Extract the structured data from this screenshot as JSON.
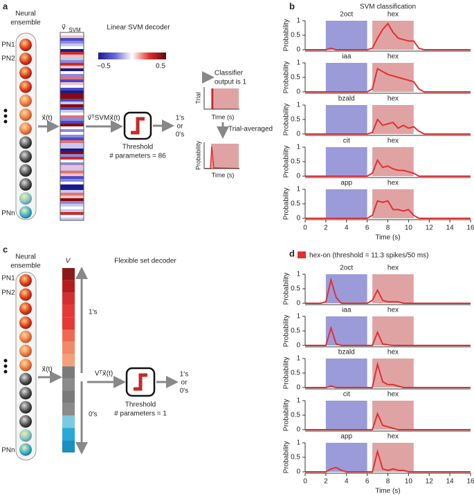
{
  "panels": {
    "a": "a",
    "b": "b",
    "c": "c",
    "d": "d"
  },
  "diagram_a": {
    "ensemble_line1": "Neural",
    "ensemble_line2": "ensemble",
    "pn1": "PN1",
    "pn2": "PN2",
    "pnn": "PNn",
    "decoder_title": "Linear SVM decoder",
    "vector_label": "v⃗",
    "vector_sub": "SVM",
    "colorbar_min": "−0.5",
    "colorbar_max": "0.5",
    "input": "x⃗(t)",
    "projection": "v⃗ᵀSVMx⃗(t)",
    "threshold": "Threshold",
    "parameters": "# parameters = 86",
    "out1": "1's",
    "out2": "or",
    "out3": "0's",
    "classifier1": "Classifier",
    "classifier2": "output is 1",
    "trial": "Trial",
    "time1": "Time (s)",
    "averaged": "Trial-averaged",
    "probability": "Probability",
    "time2": "Time (s)"
  },
  "diagram_c": {
    "ensemble_line1": "Neural",
    "ensemble_line2": "ensemble",
    "pn1": "PN1",
    "pn2": "PN2",
    "pnn": "PNn",
    "decoder_title": "Flexible set decoder",
    "vector_label": "V",
    "ones": "1's",
    "zeros": "0's",
    "input": "x⃗(t)",
    "projection": "Vᵀx⃗(t)",
    "threshold": "Threshold",
    "parameters": "# parameters = 1",
    "out1": "1's",
    "out2": "or",
    "out3": "0's"
  },
  "chart_data": [
    {
      "type": "line",
      "title": "SVM classification",
      "ylabel": "Probability",
      "xlim": [
        0,
        16
      ],
      "ylim": [
        0,
        1
      ],
      "yticks": [
        0,
        0.5,
        1
      ],
      "spans": [
        {
          "label": "2oct",
          "start": 2,
          "end": 6,
          "color": "#9b9bd9"
        },
        {
          "label": "hex",
          "start": 6.5,
          "end": 10.5,
          "color": "#e0a3a3"
        }
      ],
      "series": [
        {
          "color": "#e03030",
          "x": [
            0,
            0.5,
            1,
            1.5,
            2,
            2.5,
            3,
            3.5,
            4,
            4.5,
            5,
            5.5,
            6,
            6.5,
            7,
            7.5,
            8,
            8.5,
            9,
            9.5,
            10,
            10.5,
            11,
            11.5,
            12,
            12.5,
            13,
            13.5,
            14,
            14.5,
            15,
            15.5,
            16
          ],
          "values": [
            0,
            0,
            0,
            0,
            0,
            0.05,
            0,
            0,
            0,
            0,
            0,
            0,
            0,
            0.05,
            0.4,
            0.7,
            0.9,
            0.6,
            0.4,
            0.35,
            0.3,
            0.3,
            0.05,
            0,
            0,
            0,
            0,
            0,
            0,
            0,
            0,
            0,
            0
          ]
        }
      ]
    },
    {
      "type": "line",
      "ylabel": "Probability",
      "xlim": [
        0,
        16
      ],
      "ylim": [
        0,
        1
      ],
      "yticks": [
        0,
        0.5,
        1
      ],
      "spans": [
        {
          "label": "iaa",
          "start": 2,
          "end": 6,
          "color": "#9b9bd9"
        },
        {
          "label": "hex",
          "start": 6.5,
          "end": 10.5,
          "color": "#e0a3a3"
        }
      ],
      "series": [
        {
          "color": "#e03030",
          "x": [
            0,
            0.5,
            1,
            1.5,
            2,
            2.5,
            3,
            3.5,
            4,
            4.5,
            5,
            5.5,
            6,
            6.5,
            7,
            7.5,
            8,
            8.5,
            9,
            9.5,
            10,
            10.5,
            11,
            11.5,
            12,
            12.5,
            13,
            13.5,
            14,
            14.5,
            15,
            15.5,
            16
          ],
          "values": [
            0,
            0,
            0,
            0,
            0,
            0,
            0,
            0,
            0,
            0,
            0,
            0,
            0,
            0.1,
            0.8,
            0.7,
            0.6,
            0.55,
            0.5,
            0.45,
            0.4,
            0.35,
            0.1,
            0,
            0,
            0,
            0,
            0,
            0,
            0,
            0,
            0,
            0
          ]
        }
      ]
    },
    {
      "type": "line",
      "ylabel": "Probability",
      "xlim": [
        0,
        16
      ],
      "ylim": [
        0,
        1
      ],
      "yticks": [
        0,
        0.5,
        1
      ],
      "spans": [
        {
          "label": "bzald",
          "start": 2,
          "end": 6,
          "color": "#9b9bd9"
        },
        {
          "label": "hex",
          "start": 6.5,
          "end": 10.5,
          "color": "#e0a3a3"
        }
      ],
      "series": [
        {
          "color": "#e03030",
          "x": [
            0,
            0.5,
            1,
            1.5,
            2,
            2.5,
            3,
            3.5,
            4,
            4.5,
            5,
            5.5,
            6,
            6.5,
            7,
            7.5,
            8,
            8.5,
            9,
            9.5,
            10,
            10.5,
            11,
            11.5,
            12,
            12.5,
            13,
            13.5,
            14,
            14.5,
            15,
            15.5,
            16
          ],
          "values": [
            0,
            0,
            0,
            0,
            0,
            0,
            0,
            0,
            0,
            0,
            0,
            0,
            0,
            0.05,
            0.5,
            0.3,
            0.35,
            0.4,
            0.2,
            0.3,
            0.2,
            0.25,
            0.1,
            0,
            0,
            0,
            0,
            0,
            0,
            0,
            0,
            0,
            0
          ]
        }
      ]
    },
    {
      "type": "line",
      "ylabel": "Probability",
      "xlim": [
        0,
        16
      ],
      "ylim": [
        0,
        1
      ],
      "yticks": [
        0,
        0.5,
        1
      ],
      "spans": [
        {
          "label": "cit",
          "start": 2,
          "end": 6,
          "color": "#9b9bd9"
        },
        {
          "label": "hex",
          "start": 6.5,
          "end": 10.5,
          "color": "#e0a3a3"
        }
      ],
      "series": [
        {
          "color": "#e03030",
          "x": [
            0,
            0.5,
            1,
            1.5,
            2,
            2.5,
            3,
            3.5,
            4,
            4.5,
            5,
            5.5,
            6,
            6.5,
            7,
            7.5,
            8,
            8.5,
            9,
            9.5,
            10,
            10.5,
            11,
            11.5,
            12,
            12.5,
            13,
            13.5,
            14,
            14.5,
            15,
            15.5,
            16
          ],
          "values": [
            0,
            0,
            0,
            0,
            0,
            0,
            0,
            0,
            0,
            0,
            0,
            0,
            0,
            0.1,
            0.55,
            0.3,
            0.35,
            0.25,
            0.2,
            0.2,
            0.15,
            0.1,
            0,
            0,
            0,
            0,
            0,
            0,
            0,
            0,
            0,
            0,
            0
          ]
        }
      ]
    },
    {
      "type": "line",
      "ylabel": "Probability",
      "xlim": [
        0,
        16
      ],
      "ylim": [
        0,
        1
      ],
      "yticks": [
        0,
        0.5,
        1
      ],
      "xticks": [
        0,
        2,
        4,
        6,
        8,
        10,
        12,
        14,
        16
      ],
      "xlabel": "Time (s)",
      "spans": [
        {
          "label": "app",
          "start": 2,
          "end": 6,
          "color": "#9b9bd9"
        },
        {
          "label": "hex",
          "start": 6.5,
          "end": 10.5,
          "color": "#e0a3a3"
        }
      ],
      "series": [
        {
          "color": "#e03030",
          "x": [
            0,
            0.5,
            1,
            1.5,
            2,
            2.5,
            3,
            3.5,
            4,
            4.5,
            5,
            5.5,
            6,
            6.5,
            7,
            7.5,
            8,
            8.5,
            9,
            9.5,
            10,
            10.5,
            11,
            11.5,
            12,
            12.5,
            13,
            13.5,
            14,
            14.5,
            15,
            15.5,
            16
          ],
          "values": [
            0,
            0,
            0,
            0,
            0,
            0,
            0,
            0,
            0,
            0,
            0,
            0,
            0,
            0.1,
            0.6,
            0.55,
            0.6,
            0.3,
            0.3,
            0.25,
            0.3,
            0.1,
            0,
            0,
            0,
            0,
            0,
            0,
            0,
            0,
            0,
            0,
            0
          ]
        }
      ]
    },
    {
      "type": "line",
      "ylabel": "Probability",
      "xlim": [
        0,
        16
      ],
      "ylim": [
        0,
        1
      ],
      "yticks": [
        0,
        0.5,
        1
      ],
      "spans": [
        {
          "label": "2oct",
          "start": 2,
          "end": 6,
          "color": "#9b9bd9"
        },
        {
          "label": "hex",
          "start": 6.5,
          "end": 10.5,
          "color": "#e0a3a3"
        }
      ],
      "series": [
        {
          "name": "hex-on (threshold = 11.3 spikes/50 ms)",
          "color": "#e03030",
          "x": [
            0,
            0.5,
            1,
            1.5,
            2,
            2.5,
            3,
            3.5,
            4,
            4.5,
            5,
            5.5,
            6,
            6.5,
            7,
            7.5,
            8,
            8.5,
            9,
            9.5,
            10,
            10.5,
            11,
            11.5,
            12,
            12.5,
            13,
            13.5,
            14,
            14.5,
            15,
            15.5,
            16
          ],
          "values": [
            0,
            0,
            0,
            0,
            0.05,
            0.8,
            0.2,
            0,
            0,
            0,
            0,
            0,
            0,
            0.1,
            0.45,
            0.1,
            0.05,
            0.05,
            0.05,
            0,
            0,
            0,
            0,
            0,
            0,
            0,
            0,
            0,
            0,
            0,
            0,
            0,
            0
          ]
        }
      ]
    },
    {
      "type": "line",
      "ylabel": "Probability",
      "xlim": [
        0,
        16
      ],
      "ylim": [
        0,
        1
      ],
      "yticks": [
        0,
        0.5,
        1
      ],
      "spans": [
        {
          "label": "iaa",
          "start": 2,
          "end": 6,
          "color": "#9b9bd9"
        },
        {
          "label": "hex",
          "start": 6.5,
          "end": 10.5,
          "color": "#e0a3a3"
        }
      ],
      "series": [
        {
          "color": "#e03030",
          "x": [
            0,
            0.5,
            1,
            1.5,
            2,
            2.5,
            3,
            3.5,
            4,
            4.5,
            5,
            5.5,
            6,
            6.5,
            7,
            7.5,
            8,
            8.5,
            9,
            9.5,
            10,
            10.5,
            11,
            11.5,
            12,
            12.5,
            13,
            13.5,
            14,
            14.5,
            15,
            15.5,
            16
          ],
          "values": [
            0,
            0,
            0,
            0,
            0,
            0.6,
            0.05,
            0,
            0,
            0,
            0,
            0,
            0,
            0,
            0.45,
            0.05,
            0.02,
            0,
            0,
            0,
            0,
            0,
            0,
            0,
            0,
            0,
            0,
            0,
            0,
            0,
            0,
            0,
            0
          ]
        }
      ]
    },
    {
      "type": "line",
      "ylabel": "Probability",
      "xlim": [
        0,
        16
      ],
      "ylim": [
        0,
        1
      ],
      "yticks": [
        0,
        0.5,
        1
      ],
      "spans": [
        {
          "label": "bzald",
          "start": 2,
          "end": 6,
          "color": "#9b9bd9"
        },
        {
          "label": "hex",
          "start": 6.5,
          "end": 10.5,
          "color": "#e0a3a3"
        }
      ],
      "series": [
        {
          "color": "#e03030",
          "x": [
            0,
            0.5,
            1,
            1.5,
            2,
            2.5,
            3,
            3.5,
            4,
            4.5,
            5,
            5.5,
            6,
            6.5,
            7,
            7.5,
            8,
            8.5,
            9,
            9.5,
            10,
            10.5,
            11,
            11.5,
            12,
            12.5,
            13,
            13.5,
            14,
            14.5,
            15,
            15.5,
            16
          ],
          "values": [
            0,
            0,
            0,
            0,
            0,
            0.05,
            0,
            0,
            0,
            0,
            0,
            0,
            0,
            0,
            0.8,
            0.2,
            0.1,
            0.1,
            0.05,
            0,
            0,
            0,
            0,
            0,
            0,
            0,
            0,
            0,
            0,
            0,
            0,
            0,
            0
          ]
        }
      ]
    },
    {
      "type": "line",
      "ylabel": "Probability",
      "xlim": [
        0,
        16
      ],
      "ylim": [
        0,
        1
      ],
      "yticks": [
        0,
        0.5,
        1
      ],
      "spans": [
        {
          "label": "cit",
          "start": 2,
          "end": 6,
          "color": "#9b9bd9"
        },
        {
          "label": "hex",
          "start": 6.5,
          "end": 10.5,
          "color": "#e0a3a3"
        }
      ],
      "series": [
        {
          "color": "#e03030",
          "x": [
            0,
            0.5,
            1,
            1.5,
            2,
            2.5,
            3,
            3.5,
            4,
            4.5,
            5,
            5.5,
            6,
            6.5,
            7,
            7.5,
            8,
            8.5,
            9,
            9.5,
            10,
            10.5,
            11,
            11.5,
            12,
            12.5,
            13,
            13.5,
            14,
            14.5,
            15,
            15.5,
            16
          ],
          "values": [
            0,
            0,
            0,
            0,
            0,
            0,
            0,
            0,
            0,
            0,
            0,
            0,
            0,
            0,
            0.55,
            0.15,
            0.1,
            0.05,
            0,
            0,
            0,
            0,
            0,
            0,
            0,
            0,
            0,
            0,
            0,
            0,
            0,
            0,
            0
          ]
        }
      ]
    },
    {
      "type": "line",
      "ylabel": "Probability",
      "xlim": [
        0,
        16
      ],
      "ylim": [
        0,
        1
      ],
      "yticks": [
        0,
        0.5,
        1
      ],
      "xticks": [
        0,
        2,
        4,
        6,
        8,
        10,
        12,
        14,
        16
      ],
      "xlabel": "Time (s)",
      "spans": [
        {
          "label": "app",
          "start": 2,
          "end": 6,
          "color": "#9b9bd9"
        },
        {
          "label": "hex",
          "start": 6.5,
          "end": 10.5,
          "color": "#e0a3a3"
        }
      ],
      "series": [
        {
          "color": "#e03030",
          "x": [
            0,
            0.5,
            1,
            1.5,
            2,
            2.5,
            3,
            3.5,
            4,
            4.5,
            5,
            5.5,
            6,
            6.5,
            7,
            7.5,
            8,
            8.5,
            9,
            9.5,
            10,
            10.5,
            11,
            11.5,
            12,
            12.5,
            13,
            13.5,
            14,
            14.5,
            15,
            15.5,
            16
          ],
          "values": [
            0,
            0,
            0,
            0,
            0,
            0.1,
            0.15,
            0.05,
            0,
            0,
            0,
            0,
            0,
            0,
            0.7,
            0.1,
            0.05,
            0.1,
            0.05,
            0.05,
            0,
            0,
            0,
            0,
            0,
            0,
            0,
            0,
            0,
            0,
            0,
            0,
            0
          ]
        }
      ]
    }
  ]
}
